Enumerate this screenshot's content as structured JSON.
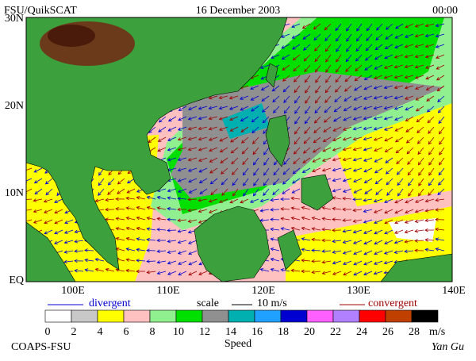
{
  "header": {
    "left": "FSU/QuikSCAT",
    "center": "16 December 2003",
    "right": "00:00"
  },
  "map": {
    "lat_labels": [
      "30N",
      "20N",
      "10N",
      "EQ"
    ],
    "lon_labels": [
      "100E",
      "110E",
      "120E",
      "130E",
      "140E"
    ]
  },
  "legend": {
    "divergent": "divergent",
    "scale": "scale",
    "scale_value": "10 m/s",
    "convergent": "convergent"
  },
  "colorbar": {
    "ticks": [
      0,
      2,
      4,
      6,
      8,
      10,
      12,
      14,
      16,
      18,
      20,
      22,
      24,
      26,
      28
    ],
    "colors": [
      "#ffffff",
      "#c8c8c8",
      "#ffff00",
      "#ffc0c0",
      "#90f090",
      "#00e000",
      "#909090",
      "#00b0b0",
      "#20a0ff",
      "#0000d0",
      "#ff60ff",
      "#b080ff",
      "#ff0000",
      "#c04000",
      "#000000"
    ],
    "unit": "m/s",
    "label": "Speed"
  },
  "footer": {
    "left": "COAPS-FSU",
    "right": "Yan Gu"
  }
}
